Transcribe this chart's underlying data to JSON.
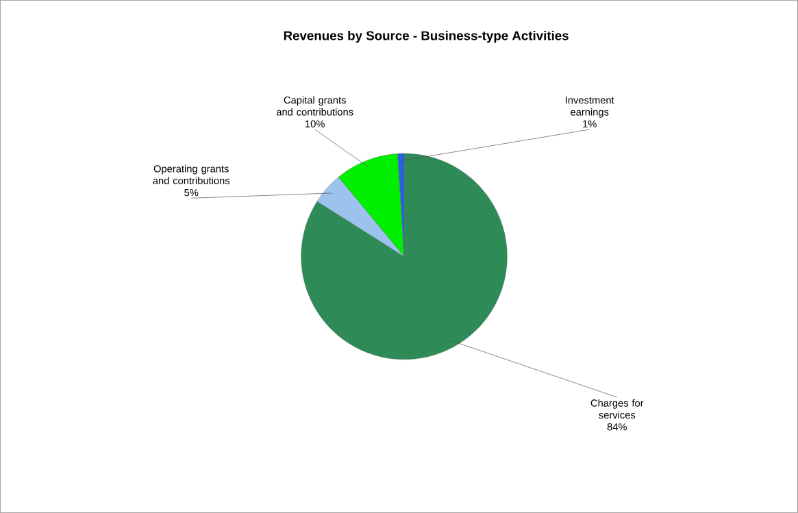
{
  "chart_data": {
    "type": "pie",
    "title": "Revenues by Source - Business-type Activities",
    "categories": [
      "Charges for services",
      "Operating grants and contributions",
      "Capital grants and contributions",
      "Investment earnings"
    ],
    "values": [
      84,
      5,
      10,
      1
    ],
    "value_labels": [
      "84%",
      "5%",
      "10%",
      "1%"
    ],
    "colors": [
      "#2e8b57",
      "#9cc3ee",
      "#00ee00",
      "#2a5fe0"
    ],
    "legend": false
  }
}
